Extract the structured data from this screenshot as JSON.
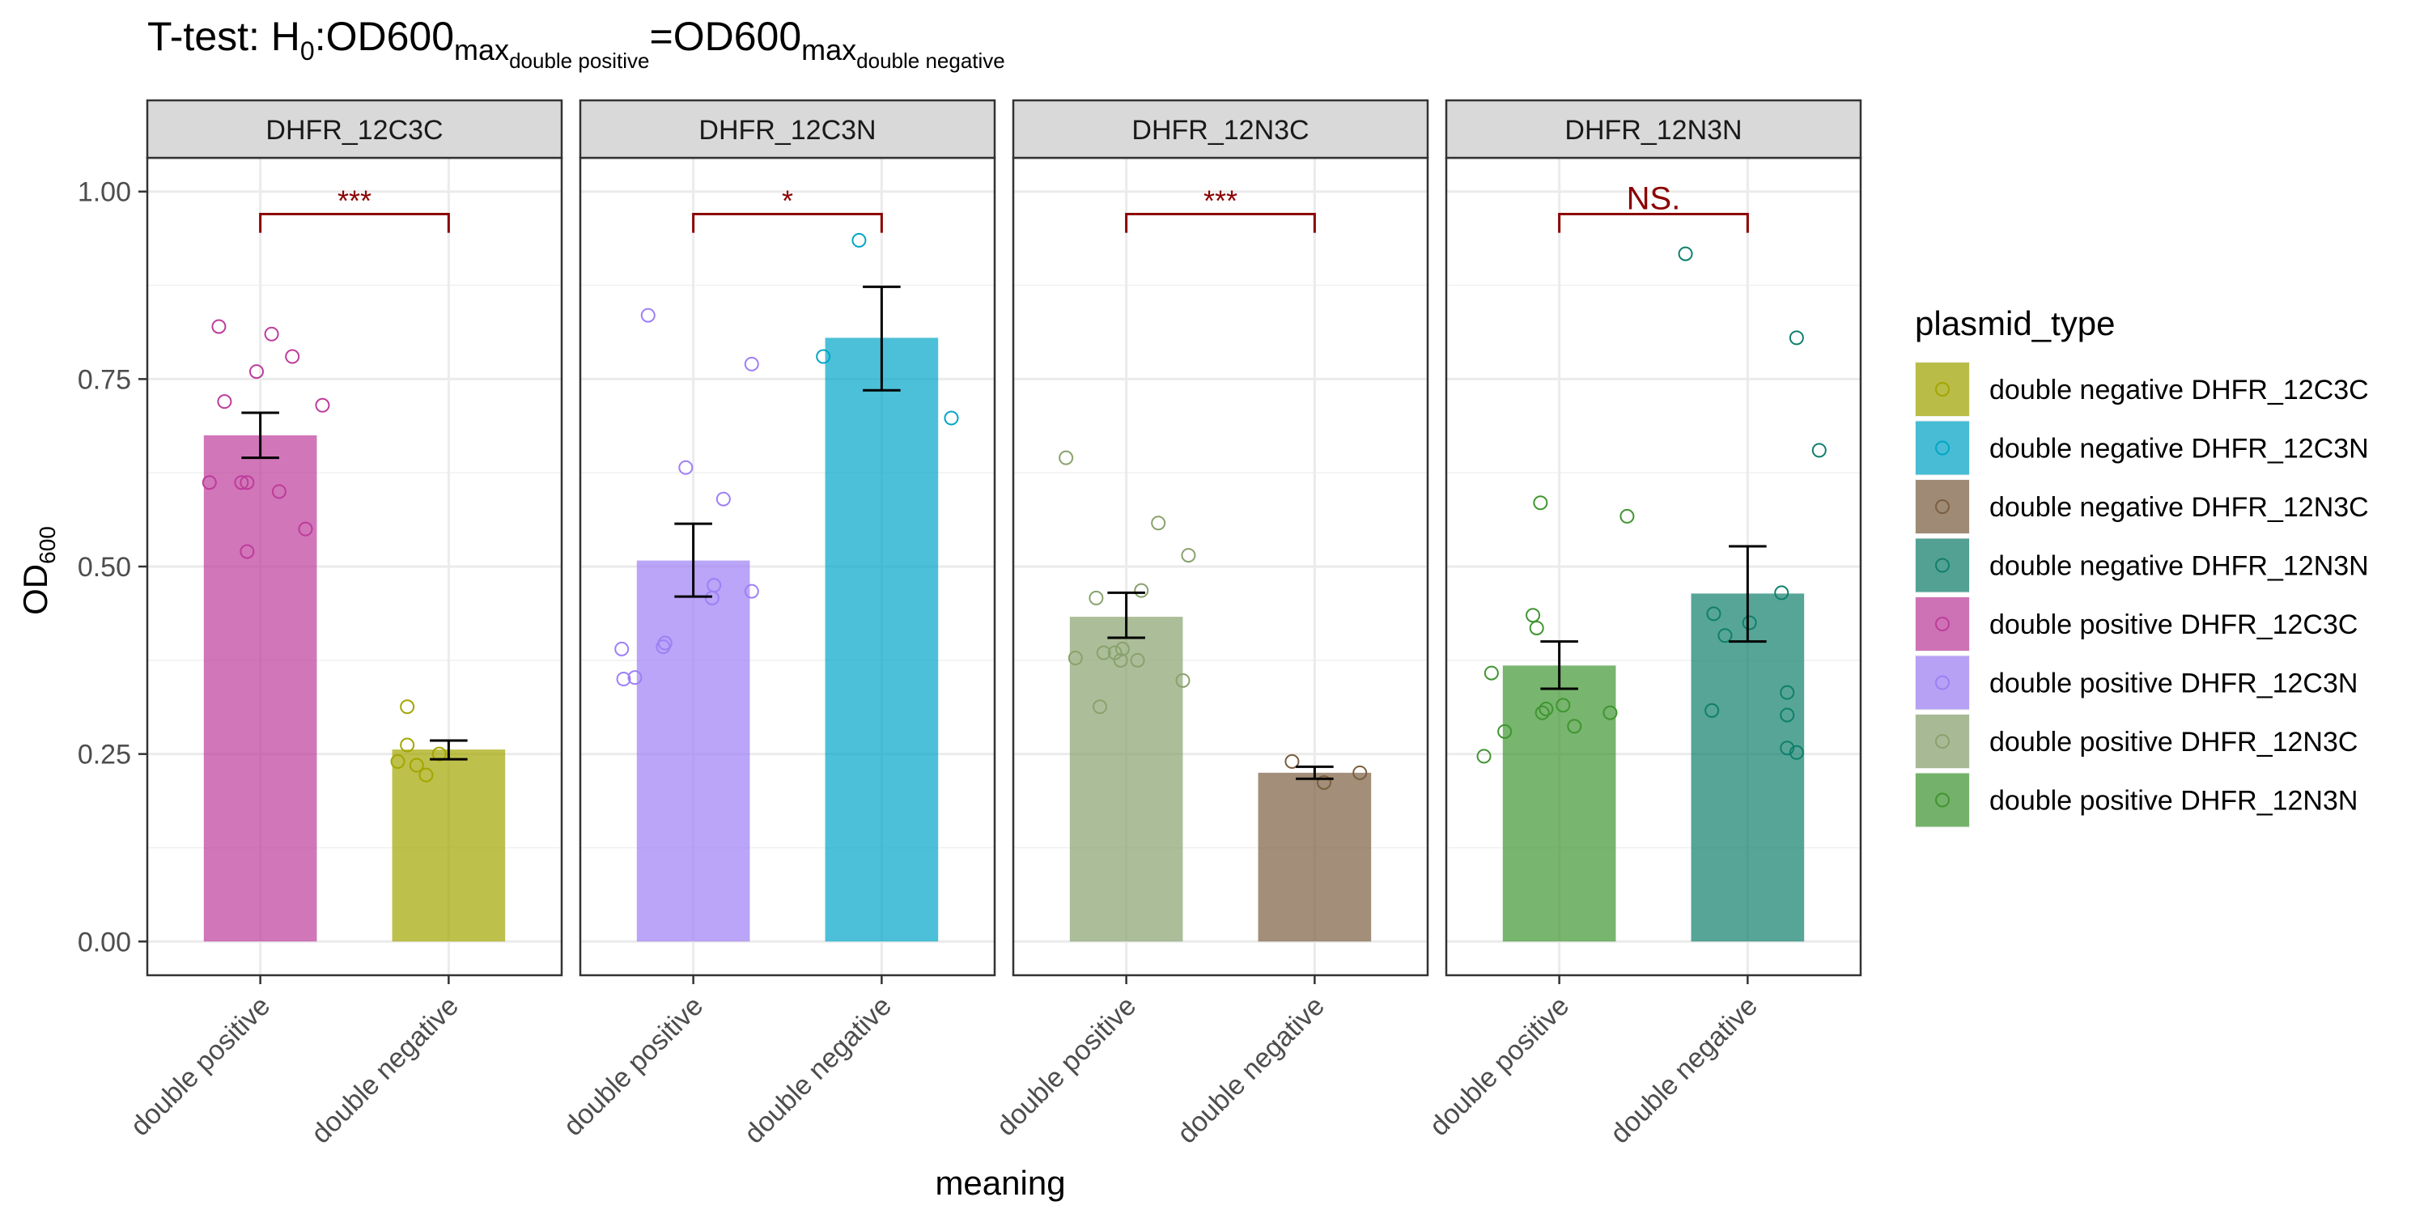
{
  "chart_data": {
    "type": "bar",
    "title": {
      "prefix": "T-test: H",
      "h_sub": "0",
      "mid1": ":OD600",
      "max1": "max",
      "sub1": "double positive",
      "eq": "=OD600",
      "max2": "max",
      "sub2": "double negative"
    },
    "xlabel": "meaning",
    "ylabel": {
      "main": "OD",
      "sub": "600"
    },
    "ylim": [
      -0.045,
      1.045
    ],
    "yticks": [
      {
        "value": 0.0,
        "label": "0.00"
      },
      {
        "value": 0.25,
        "label": "0.25"
      },
      {
        "value": 0.5,
        "label": "0.50"
      },
      {
        "value": 0.75,
        "label": "0.75"
      },
      {
        "value": 1.0,
        "label": "1.00"
      }
    ],
    "categories": [
      "double positive",
      "double negative"
    ],
    "grid": true,
    "legend": {
      "title": "plasmid_type",
      "position": "right",
      "entries": [
        {
          "label": "double negative DHFR_12C3C",
          "color": "#A3A500"
        },
        {
          "label": "double negative DHFR_12C3N",
          "color": "#00A5C7"
        },
        {
          "label": "double negative DHFR_12N3C",
          "color": "#7A5E40"
        },
        {
          "label": "double negative DHFR_12N3N",
          "color": "#0F7F6B"
        },
        {
          "label": "double positive DHFR_12C3C",
          "color": "#BE3C9B"
        },
        {
          "label": "double positive DHFR_12C3N",
          "color": "#9D7FF5"
        },
        {
          "label": "double positive DHFR_12N3C",
          "color": "#89A26D"
        },
        {
          "label": "double positive DHFR_12N3N",
          "color": "#3F9530"
        }
      ]
    },
    "panels": [
      {
        "strip": "DHFR_12C3C",
        "significance": "***",
        "bars": [
          {
            "category": "double positive",
            "mean": 0.675,
            "se_low": 0.645,
            "se_high": 0.705,
            "color": "#BE3C9B",
            "points": [
              [
                -0.22,
                0.82
              ],
              [
                0.06,
                0.81
              ],
              [
                0.17,
                0.78
              ],
              [
                -0.02,
                0.76
              ],
              [
                -0.19,
                0.72
              ],
              [
                0.33,
                0.715
              ],
              [
                -0.1,
                0.612
              ],
              [
                -0.07,
                0.612
              ],
              [
                -0.27,
                0.612
              ],
              [
                0.1,
                0.6
              ],
              [
                0.24,
                0.55
              ],
              [
                -0.07,
                0.52
              ]
            ]
          },
          {
            "category": "double negative",
            "mean": 0.256,
            "se_low": 0.243,
            "se_high": 0.268,
            "color": "#A3A500",
            "points": [
              [
                -0.22,
                0.313
              ],
              [
                -0.22,
                0.262
              ],
              [
                -0.05,
                0.25
              ],
              [
                -0.27,
                0.24
              ],
              [
                -0.17,
                0.235
              ],
              [
                -0.12,
                0.222
              ]
            ]
          }
        ]
      },
      {
        "strip": "DHFR_12C3N",
        "significance": "*",
        "bars": [
          {
            "category": "double positive",
            "mean": 0.508,
            "se_low": 0.46,
            "se_high": 0.557,
            "color": "#9D7FF5",
            "points": [
              [
                -0.24,
                0.835
              ],
              [
                0.31,
                0.77
              ],
              [
                -0.04,
                0.632
              ],
              [
                0.16,
                0.59
              ],
              [
                0.11,
                0.475
              ],
              [
                0.31,
                0.467
              ],
              [
                0.1,
                0.458
              ],
              [
                -0.15,
                0.398
              ],
              [
                -0.16,
                0.393
              ],
              [
                -0.38,
                0.39
              ],
              [
                -0.31,
                0.352
              ],
              [
                -0.37,
                0.35
              ]
            ]
          },
          {
            "category": "double negative",
            "mean": 0.805,
            "se_low": 0.735,
            "se_high": 0.873,
            "color": "#00A5C7",
            "points": [
              [
                -0.12,
                0.935
              ],
              [
                -0.31,
                0.78
              ],
              [
                0.37,
                0.698
              ]
            ]
          }
        ]
      },
      {
        "strip": "DHFR_12N3C",
        "significance": "***",
        "bars": [
          {
            "category": "double positive",
            "mean": 0.433,
            "se_low": 0.405,
            "se_high": 0.465,
            "color": "#89A26D",
            "points": [
              [
                -0.32,
                0.645
              ],
              [
                0.17,
                0.558
              ],
              [
                0.33,
                0.515
              ],
              [
                0.08,
                0.468
              ],
              [
                -0.16,
                0.458
              ],
              [
                -0.02,
                0.39
              ],
              [
                -0.06,
                0.385
              ],
              [
                -0.12,
                0.385
              ],
              [
                -0.03,
                0.375
              ],
              [
                0.06,
                0.375
              ],
              [
                -0.27,
                0.378
              ],
              [
                0.3,
                0.348
              ],
              [
                -0.14,
                0.313
              ]
            ]
          },
          {
            "category": "double negative",
            "mean": 0.225,
            "se_low": 0.217,
            "se_high": 0.233,
            "color": "#7A5E40",
            "points": [
              [
                -0.12,
                0.24
              ],
              [
                0.24,
                0.225
              ],
              [
                0.05,
                0.212
              ]
            ]
          }
        ]
      },
      {
        "strip": "DHFR_12N3N",
        "significance": "NS.",
        "bars": [
          {
            "category": "double positive",
            "mean": 0.368,
            "se_low": 0.337,
            "se_high": 0.4,
            "color": "#3F9530",
            "points": [
              [
                -0.1,
                0.585
              ],
              [
                0.36,
                0.567
              ],
              [
                -0.14,
                0.435
              ],
              [
                -0.12,
                0.418
              ],
              [
                -0.36,
                0.358
              ],
              [
                0.02,
                0.315
              ],
              [
                -0.07,
                0.31
              ],
              [
                -0.09,
                0.305
              ],
              [
                0.27,
                0.305
              ],
              [
                0.08,
                0.287
              ],
              [
                -0.29,
                0.28
              ],
              [
                -0.4,
                0.247
              ]
            ]
          },
          {
            "category": "double negative",
            "mean": 0.464,
            "se_low": 0.4,
            "se_high": 0.527,
            "color": "#0F7F6B",
            "points": [
              [
                -0.33,
                0.917
              ],
              [
                0.26,
                0.805
              ],
              [
                0.38,
                0.655
              ],
              [
                0.18,
                0.465
              ],
              [
                -0.18,
                0.437
              ],
              [
                0.01,
                0.425
              ],
              [
                -0.12,
                0.408
              ],
              [
                0.21,
                0.332
              ],
              [
                0.21,
                0.302
              ],
              [
                -0.19,
                0.308
              ],
              [
                0.21,
                0.258
              ],
              [
                0.26,
                0.252
              ]
            ]
          }
        ]
      }
    ]
  }
}
